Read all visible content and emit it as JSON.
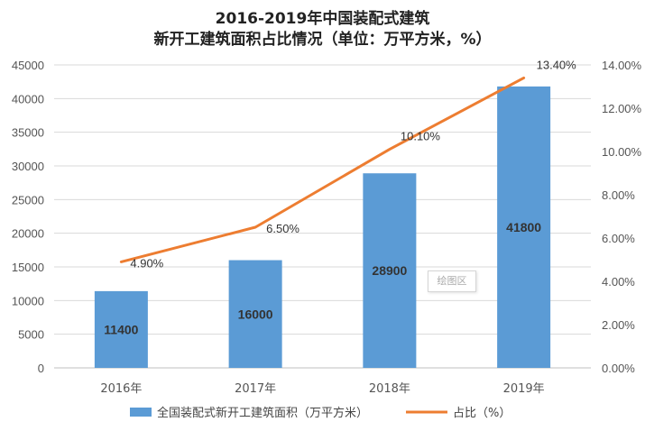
{
  "chart_data": {
    "type": "bar",
    "title": "2016-2019年中国装配式建筑",
    "subtitle": "新开工建筑面积占比情况（单位：万平方米，%）",
    "categories": [
      "2016年",
      "2017年",
      "2018年",
      "2019年"
    ],
    "series": [
      {
        "name": "全国装配式新开工建筑面积（万平方米）",
        "type": "bar",
        "axis": "left",
        "values": [
          11400,
          16000,
          28900,
          41800
        ],
        "labels": [
          "11400",
          "16000",
          "28900",
          "41800"
        ],
        "color": "#5b9bd5"
      },
      {
        "name": "占比（%）",
        "type": "line",
        "axis": "right",
        "values": [
          4.9,
          6.5,
          10.1,
          13.4
        ],
        "labels": [
          "4.90%",
          "6.50%",
          "10.10%",
          "13.40%"
        ],
        "color": "#ed7d31"
      }
    ],
    "y_left": {
      "min": 0,
      "max": 45000,
      "ticks": [
        "0",
        "5000",
        "10000",
        "15000",
        "20000",
        "25000",
        "30000",
        "35000",
        "40000",
        "45000"
      ]
    },
    "y_right": {
      "min": 0,
      "max": 14,
      "ticks": [
        "0.00%",
        "2.00%",
        "4.00%",
        "6.00%",
        "8.00%",
        "10.00%",
        "12.00%",
        "14.00%"
      ]
    },
    "grid": true,
    "legend_position": "bottom"
  },
  "overlay_tag": "绘图区"
}
